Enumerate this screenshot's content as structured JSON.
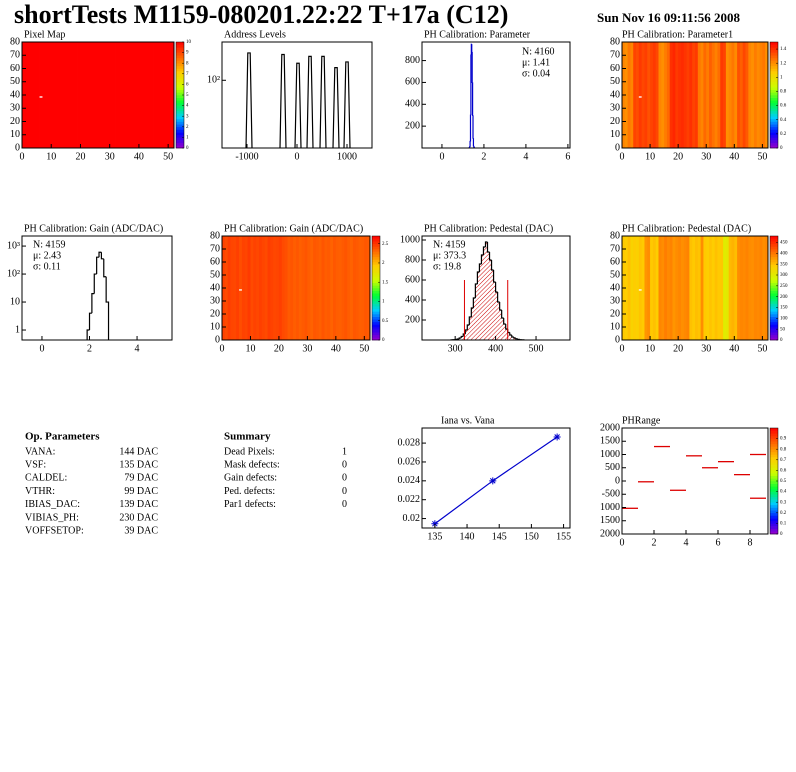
{
  "header": {
    "title": "shortTests M1159-080201.22:22 T+17a (C12)",
    "date": "Sun Nov 16 09:11:56 2008"
  },
  "palette": [
    "#9900cc",
    "#0000ff",
    "#00ccff",
    "#00ff33",
    "#ccff00",
    "#ffcc00",
    "#ff6600",
    "#ff0000"
  ],
  "chart_data": [
    {
      "type": "heatmap",
      "title": "Pixel Map",
      "xlim": [
        0,
        52
      ],
      "ylim": [
        0,
        80
      ],
      "xticks": [
        0,
        10,
        20,
        30,
        40,
        50
      ],
      "yticks": [
        0,
        10,
        20,
        30,
        40,
        50,
        60,
        70,
        80
      ],
      "zlim": [
        0,
        10
      ],
      "zticks": [
        0,
        1,
        2,
        3,
        4,
        5,
        6,
        7,
        8,
        9,
        10
      ],
      "values": [
        10,
        10,
        10,
        10,
        10,
        10,
        10,
        10,
        10,
        10,
        10,
        10,
        10,
        10,
        10,
        10,
        10,
        10,
        10,
        10,
        10,
        10,
        10,
        10,
        10,
        10,
        10,
        10,
        10,
        10,
        10,
        10,
        10,
        10,
        10,
        10,
        10,
        10,
        10,
        10,
        10,
        10,
        10,
        10,
        10,
        10,
        10,
        10,
        10,
        10,
        10,
        10
      ],
      "missing_x": [
        6
      ],
      "missing_y": [
        38
      ]
    },
    {
      "type": "spikes",
      "title": "Address Levels",
      "xlim": [
        -1500,
        1500
      ],
      "ylim": [
        0.5,
        2000
      ],
      "logy": true,
      "xticks": [
        -1000,
        0,
        1000
      ],
      "yticks": [
        {
          "value": 100,
          "label": "10²"
        }
      ],
      "x": [
        -960,
        -280,
        20,
        260,
        520,
        780,
        1000
      ],
      "values": [
        850,
        750,
        380,
        650,
        650,
        270,
        420
      ],
      "color": "#000000"
    },
    {
      "type": "histogram",
      "title": "PH Calibration: Parameter",
      "xlim": [
        -0.95,
        6.1
      ],
      "ylim": [
        0,
        970
      ],
      "xticks": [
        0,
        2,
        4,
        6
      ],
      "yticks": [
        200,
        400,
        600,
        800
      ],
      "bins": [
        1.3,
        1.32,
        1.34,
        1.36,
        1.38,
        1.4,
        1.42,
        1.44,
        1.46,
        1.48,
        1.5,
        1.52,
        1.54
      ],
      "values": [
        2,
        10,
        60,
        300,
        850,
        950,
        880,
        600,
        300,
        90,
        20,
        5
      ],
      "color": "#0000cc",
      "stats": [
        "N: 4160",
        "μ: 1.41",
        "σ: 0.04"
      ],
      "stats_colors": [
        "#0000ff",
        "#0000ff",
        "#0000ff"
      ]
    },
    {
      "type": "heatmap",
      "title": "PH Calibration: Parameter1",
      "xlim": [
        0,
        52
      ],
      "ylim": [
        0,
        80
      ],
      "xticks": [
        0,
        10,
        20,
        30,
        40,
        50
      ],
      "yticks": [
        0,
        10,
        20,
        30,
        40,
        50,
        60,
        70,
        80
      ],
      "zlim": [
        0,
        1.5
      ],
      "zticks": [
        0,
        0.2,
        0.4,
        0.6,
        0.8,
        1,
        1.2,
        1.4
      ],
      "values": [
        1.22,
        1.2,
        1.25,
        1.22,
        1.36,
        1.34,
        1.38,
        1.35,
        1.37,
        1.33,
        1.36,
        1.38,
        1.35,
        1.22,
        1.2,
        1.24,
        1.28,
        1.4,
        1.42,
        1.38,
        1.4,
        1.41,
        1.39,
        1.37,
        1.4,
        1.36,
        1.38,
        1.25,
        1.22,
        1.28,
        1.24,
        1.3,
        1.26,
        1.23,
        1.27,
        1.38,
        1.36,
        1.2,
        1.22,
        1.25,
        1.21,
        1.33,
        1.3,
        1.35,
        1.31,
        1.22,
        1.2,
        1.24,
        1.21,
        1.23,
        1.25,
        1.2
      ],
      "missing_x": [
        6
      ],
      "missing_y": [
        38
      ]
    },
    {
      "type": "histogram",
      "title": "PH Calibration: Gain (ADC/DAC)",
      "xlim": [
        -0.84,
        5.47
      ],
      "ylim": [
        0.44,
        2290
      ],
      "logy": true,
      "xticks": [
        0,
        2,
        4
      ],
      "yticks": [
        1,
        10,
        {
          "value": 100,
          "label": "10²"
        },
        {
          "value": 1000,
          "label": "10³"
        }
      ],
      "bins": [
        1.9,
        2.0,
        2.1,
        2.2,
        2.3,
        2.4,
        2.5,
        2.6,
        2.7,
        2.8
      ],
      "values": [
        1,
        4,
        20,
        100,
        400,
        600,
        350,
        80,
        10
      ],
      "color": "#000000",
      "stats": [
        "N: 4159",
        "μ: 2.43",
        "σ: 0.11"
      ],
      "stats_colors": [
        "#000000",
        "#000000",
        "#000000"
      ]
    },
    {
      "type": "heatmap",
      "title": "PH Calibration: Gain (ADC/DAC)",
      "xlim": [
        0,
        52
      ],
      "ylim": [
        0,
        80
      ],
      "xticks": [
        0,
        10,
        20,
        30,
        40,
        50
      ],
      "yticks": [
        0,
        10,
        20,
        30,
        40,
        50,
        60,
        70,
        80
      ],
      "zlim": [
        0,
        2.7
      ],
      "zticks": [
        0,
        0.5,
        1,
        1.5,
        2,
        2.5
      ],
      "values": [
        2.45,
        2.42,
        2.47,
        2.44,
        2.43,
        2.46,
        2.41,
        2.45,
        2.44,
        2.48,
        2.42,
        2.45,
        2.43,
        2.46,
        2.44,
        2.42,
        2.47,
        2.45,
        2.43,
        2.44,
        2.46,
        2.42,
        2.4,
        2.36,
        2.38,
        2.35,
        2.37,
        2.34,
        2.36,
        2.38,
        2.35,
        2.33,
        2.37,
        2.36,
        2.34,
        2.38,
        2.35,
        2.36,
        2.33,
        2.37,
        2.35,
        2.34,
        2.36,
        2.38,
        2.35,
        2.33,
        2.37,
        2.36,
        2.34,
        2.35,
        2.37,
        2.36
      ],
      "missing_x": [
        6
      ],
      "missing_y": [
        38
      ]
    },
    {
      "type": "histogram",
      "title": "PH Calibration: Pedestal (DAC)",
      "xlim": [
        218,
        584
      ],
      "ylim": [
        0,
        1040
      ],
      "xticks": [
        300,
        400,
        500
      ],
      "yticks": [
        200,
        400,
        600,
        800,
        1000
      ],
      "bins": [
        290,
        295,
        300,
        305,
        310,
        315,
        320,
        325,
        330,
        335,
        340,
        345,
        350,
        355,
        360,
        365,
        370,
        375,
        380,
        385,
        390,
        395,
        400,
        405,
        410,
        415,
        420,
        425,
        430,
        435,
        440,
        445,
        450,
        455,
        460,
        465,
        470
      ],
      "values": [
        2,
        3,
        5,
        10,
        20,
        35,
        60,
        100,
        150,
        230,
        320,
        420,
        560,
        680,
        760,
        850,
        930,
        980,
        880,
        800,
        700,
        580,
        480,
        380,
        300,
        220,
        160,
        110,
        75,
        50,
        30,
        20,
        12,
        6,
        3,
        1
      ],
      "color": "#000000",
      "fill": "#cc0000",
      "cuts": [
        323,
        430
      ],
      "cut_height": 600,
      "cut_color": "#dd0000",
      "stats": [
        "N: 4159",
        "μ: 373.3",
        "σ: 19.8"
      ],
      "stats_colors": [
        "#000000",
        "#dd0000",
        "#dd0000"
      ]
    },
    {
      "type": "heatmap",
      "title": "PH Calibration: Pedestal (DAC)",
      "xlim": [
        0,
        52
      ],
      "ylim": [
        0,
        80
      ],
      "xticks": [
        0,
        10,
        20,
        30,
        40,
        50
      ],
      "yticks": [
        0,
        10,
        20,
        30,
        40,
        50,
        60,
        70,
        80
      ],
      "zlim": [
        0,
        480
      ],
      "zticks": [
        0,
        50,
        100,
        150,
        200,
        250,
        300,
        350,
        400,
        450
      ],
      "values": [
        345,
        340,
        350,
        335,
        342,
        338,
        348,
        344,
        380,
        385,
        345,
        350,
        342,
        390,
        385,
        395,
        388,
        392,
        380,
        386,
        390,
        384,
        388,
        392,
        350,
        345,
        352,
        348,
        385,
        345,
        340,
        348,
        342,
        350,
        344,
        346,
        300,
        305,
        355,
        360,
        352,
        385,
        390,
        388,
        392,
        386,
        384,
        390,
        388,
        392,
        385,
        389
      ],
      "missing_x": [
        6
      ],
      "missing_y": [
        38
      ]
    },
    {
      "type": "scatter",
      "title": "Iana vs. Vana",
      "xlim": [
        133,
        156
      ],
      "ylim": [
        0.019,
        0.0296
      ],
      "xticks": [
        135,
        140,
        145,
        150,
        155
      ],
      "yticks": [
        0.02,
        0.022,
        0.024,
        0.026,
        0.028
      ],
      "x": [
        135,
        144,
        154
      ],
      "values": [
        0.01945,
        0.024,
        0.02865
      ],
      "color": "#0000cc"
    },
    {
      "type": "dashes",
      "title": "PHRange",
      "xlim": [
        0,
        9.125
      ],
      "ylim": [
        -2000,
        2000
      ],
      "xticks": [
        0,
        2,
        4,
        6,
        8
      ],
      "yticks": [
        {
          "value": -2000,
          "label": "2000"
        },
        {
          "value": -1500,
          "label": "1500"
        },
        {
          "value": -1000,
          "label": "1000"
        },
        -500,
        0,
        500,
        1000,
        1500,
        2000
      ],
      "zlim": [
        0,
        1
      ],
      "zticks": [
        0,
        0.1,
        0.2,
        0.3,
        0.4,
        0.5,
        0.6,
        0.7,
        0.8,
        0.9
      ],
      "x": [
        0.5,
        1.5,
        2.5,
        3.5,
        4.5,
        5.5,
        6.5,
        7.5,
        8.5,
        8.5
      ],
      "values": [
        -1030,
        -30,
        1300,
        -350,
        950,
        500,
        730,
        240,
        1000,
        -650
      ],
      "color": "#dd0000"
    }
  ],
  "parameters": {
    "title": "Op. Parameters",
    "rows": [
      [
        "VANA:",
        "144 DAC"
      ],
      [
        "VSF:",
        "135 DAC"
      ],
      [
        "CALDEL:",
        "79 DAC"
      ],
      [
        "VTHR:",
        "99 DAC"
      ],
      [
        "IBIAS_DAC:",
        "139 DAC"
      ],
      [
        "VIBIAS_PH:",
        "230 DAC"
      ],
      [
        "VOFFSETOP:",
        "39 DAC"
      ]
    ]
  },
  "summary": {
    "title": "Summary",
    "rows": [
      {
        "label": "Dead Pixels:",
        "value": 1,
        "color": "#000000"
      },
      {
        "label": "Mask defects:",
        "value": 0,
        "color": "#000000"
      },
      {
        "label": "Gain defects:",
        "value": 0,
        "color": "#000000"
      },
      {
        "label": "Ped. defects:",
        "value": 0,
        "color": "#dd0000"
      },
      {
        "label": "Par1 defects:",
        "value": 0,
        "color": "#0000cc"
      }
    ]
  }
}
